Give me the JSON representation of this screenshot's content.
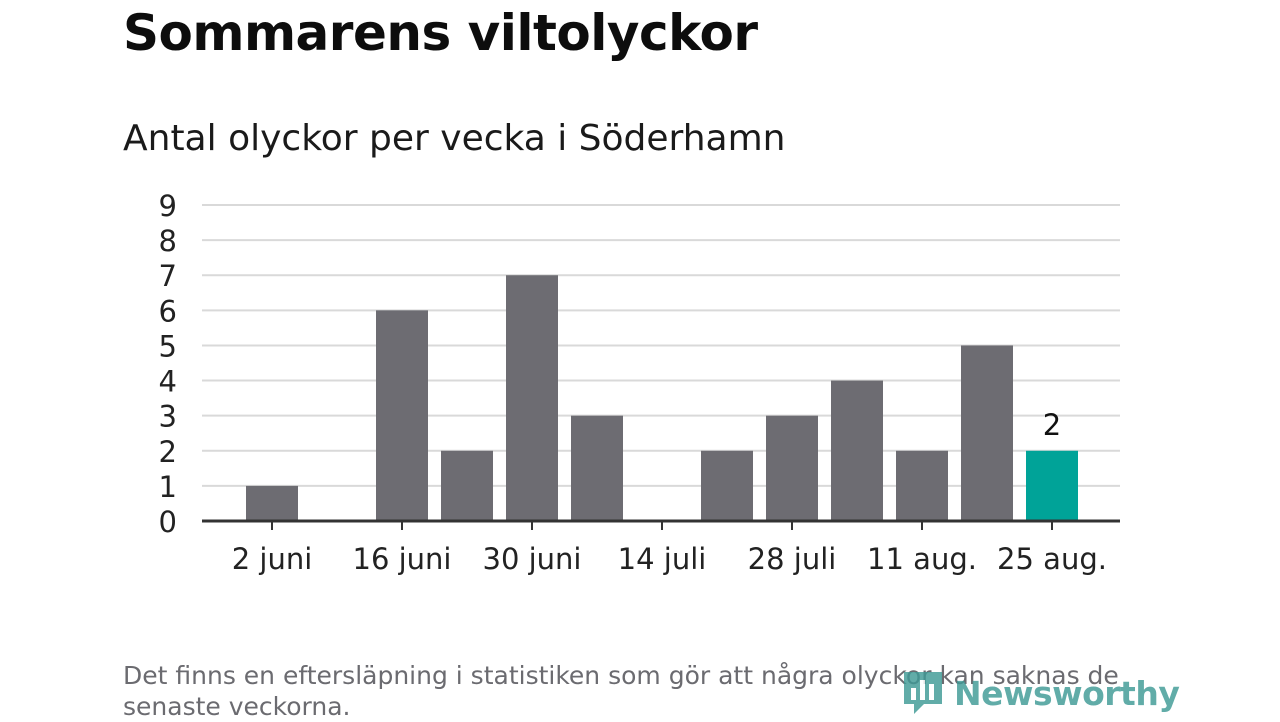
{
  "title": "Sommarens viltolyckor",
  "subtitle": "Antal olyckor per vecka i Söderhamn",
  "note": "Det finns en eftersläpning i statistiken som gör att några olyckor kan saknas de senaste veckorna.",
  "logo": {
    "text": "Newsworthy",
    "icon": "bar-chart-logo-icon",
    "color": "#3f9a96"
  },
  "colors": {
    "bar": "#6d6c72",
    "highlight": "#00a398",
    "grid": "#d9d9d9",
    "axis": "#333333"
  },
  "chart_data": {
    "type": "bar",
    "title": "Antal olyckor per vecka i Söderhamn",
    "xlabel": "",
    "ylabel": "",
    "ylim": [
      0,
      9
    ],
    "yticks": [
      0,
      1,
      2,
      3,
      4,
      5,
      6,
      7,
      8,
      9
    ],
    "grid": true,
    "values": [
      1,
      0,
      6,
      2,
      7,
      3,
      0,
      2,
      3,
      4,
      2,
      5,
      2
    ],
    "highlight_index": 12,
    "tick_labels": [
      {
        "index": 0,
        "label": "2 juni"
      },
      {
        "index": 2,
        "label": "16 juni"
      },
      {
        "index": 4,
        "label": "30 juni"
      },
      {
        "index": 6,
        "label": "14 juli"
      },
      {
        "index": 8,
        "label": "28 juli"
      },
      {
        "index": 10,
        "label": "11 aug."
      },
      {
        "index": 12,
        "label": "25 aug."
      }
    ],
    "data_labels": [
      {
        "index": 12,
        "label": "2"
      }
    ]
  }
}
